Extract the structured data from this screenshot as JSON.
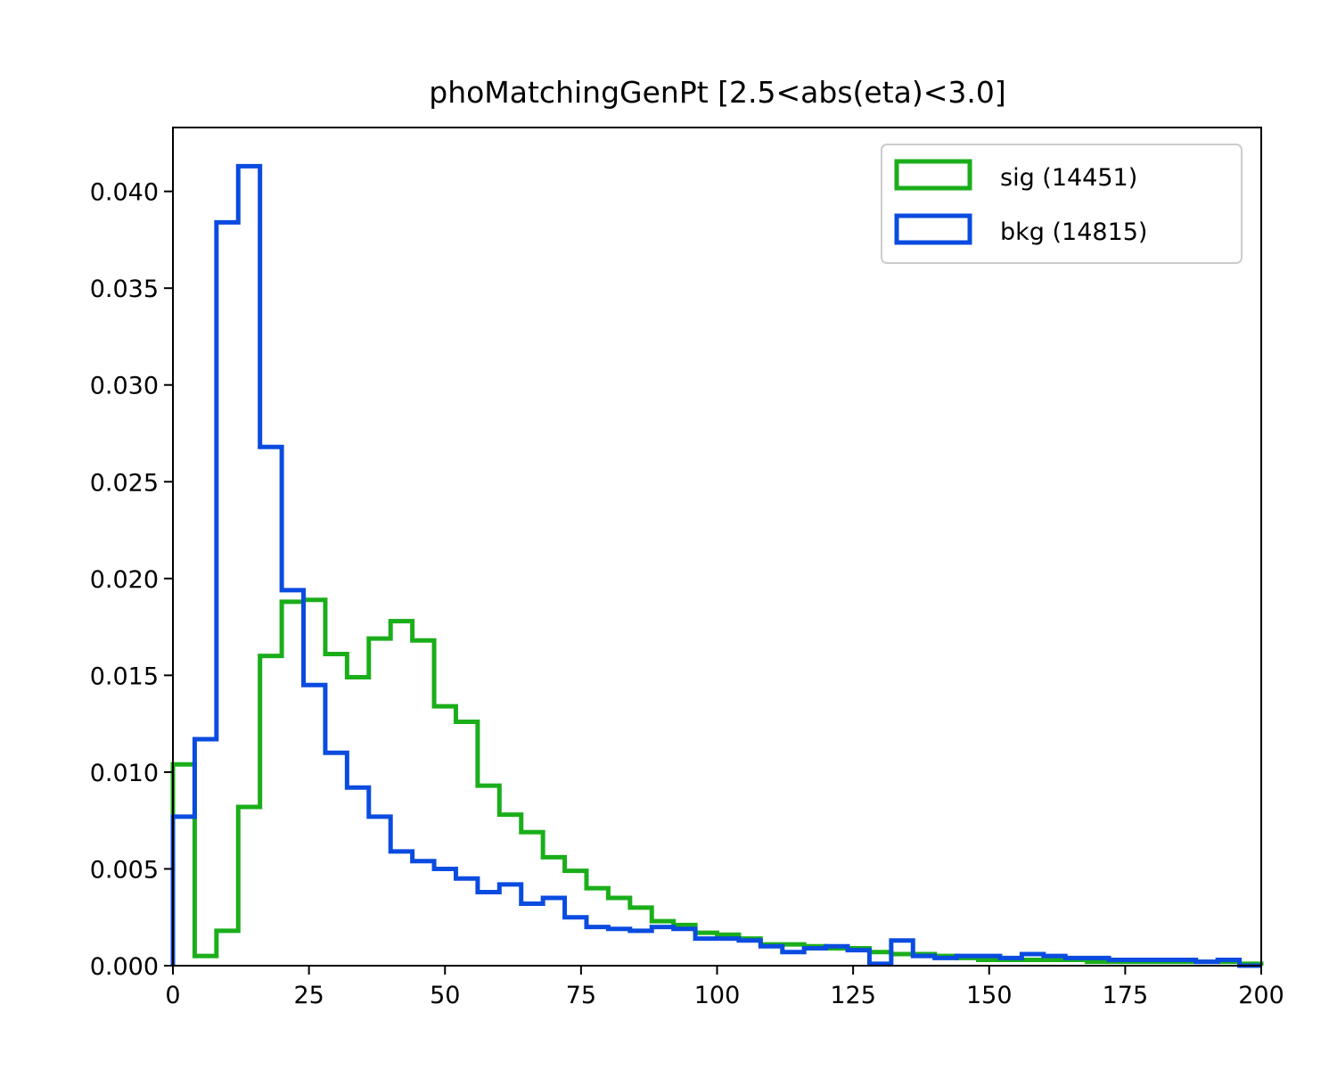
{
  "chart_data": {
    "type": "histogram",
    "title": "phoMatchingGenPt [2.5<abs(eta)<3.0]",
    "xlabel": "",
    "ylabel": "",
    "xlim": [
      0,
      200
    ],
    "ylim": [
      0,
      0.0433
    ],
    "grid": false,
    "legend_position": "top-right",
    "bin_edges": [
      0,
      4,
      8,
      12,
      16,
      20,
      24,
      28,
      32,
      36,
      40,
      44,
      48,
      52,
      56,
      60,
      64,
      68,
      72,
      76,
      80,
      84,
      88,
      92,
      96,
      100,
      104,
      108,
      112,
      116,
      120,
      124,
      128,
      132,
      136,
      140,
      144,
      148,
      152,
      156,
      160,
      164,
      168,
      172,
      176,
      180,
      184,
      188,
      192,
      196,
      200
    ],
    "x_ticks": [
      0,
      25,
      50,
      75,
      100,
      125,
      150,
      175,
      200
    ],
    "x_tick_labels": [
      "0",
      "25",
      "50",
      "75",
      "100",
      "125",
      "150",
      "175",
      "200"
    ],
    "y_ticks": [
      0,
      0.005,
      0.01,
      0.015,
      0.02,
      0.025,
      0.03,
      0.035,
      0.04
    ],
    "y_tick_labels": [
      "0.000",
      "0.005",
      "0.010",
      "0.015",
      "0.020",
      "0.025",
      "0.030",
      "0.035",
      "0.040"
    ],
    "series": [
      {
        "name": "sig (14451)",
        "color": "#1aae1a",
        "values": [
          0.0104,
          0.0005,
          0.0018,
          0.0082,
          0.016,
          0.0188,
          0.0189,
          0.0161,
          0.0149,
          0.0169,
          0.0178,
          0.0168,
          0.0134,
          0.0126,
          0.0093,
          0.0078,
          0.0069,
          0.0056,
          0.0049,
          0.004,
          0.0035,
          0.003,
          0.0023,
          0.0021,
          0.0017,
          0.0016,
          0.0014,
          0.0011,
          0.0011,
          0.001,
          0.0009,
          0.0009,
          0.0007,
          0.0006,
          0.0006,
          0.0005,
          0.0004,
          0.0003,
          0.0003,
          0.0003,
          0.0003,
          0.0003,
          0.0002,
          0.0002,
          0.0002,
          0.0002,
          0.0002,
          0.0002,
          0.0002,
          0.0001
        ]
      },
      {
        "name": "bkg (14815)",
        "color": "#0a4be0",
        "values": [
          0.0077,
          0.0117,
          0.0384,
          0.0413,
          0.0268,
          0.0194,
          0.0145,
          0.011,
          0.0092,
          0.0077,
          0.0059,
          0.0054,
          0.005,
          0.0045,
          0.0038,
          0.0042,
          0.0032,
          0.0035,
          0.0025,
          0.002,
          0.0019,
          0.0018,
          0.002,
          0.0019,
          0.0014,
          0.0014,
          0.0013,
          0.001,
          0.0007,
          0.0009,
          0.001,
          0.0008,
          0.0001,
          0.0013,
          0.0005,
          0.0004,
          0.0005,
          0.0005,
          0.0004,
          0.0006,
          0.0005,
          0.0004,
          0.0004,
          0.0003,
          0.0003,
          0.0003,
          0.0003,
          0.0002,
          0.0003,
          0.0
        ]
      }
    ]
  }
}
